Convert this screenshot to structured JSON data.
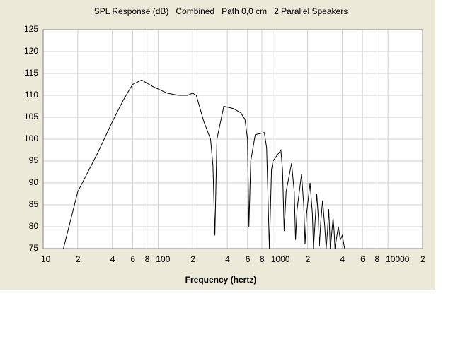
{
  "chart_data": {
    "type": "line",
    "title": "SPL Response (dB)   Combined   Path 0,0 cm   2 Parallel Speakers",
    "x_label": "Frequency (hertz)",
    "log_x": true,
    "grid": true,
    "color": "#000000",
    "xlim": [
      10,
      20000
    ],
    "ylim": [
      75,
      125
    ],
    "xticks": [
      10,
      {
        "value": 20,
        "label": "2"
      },
      {
        "value": 40,
        "label": "4"
      },
      {
        "value": 60,
        "label": "6"
      },
      {
        "value": 80,
        "label": "8"
      },
      100,
      {
        "value": 200,
        "label": "2"
      },
      {
        "value": 400,
        "label": "4"
      },
      {
        "value": 600,
        "label": "6"
      },
      {
        "value": 800,
        "label": "8"
      },
      1000,
      {
        "value": 2000,
        "label": "2"
      },
      {
        "value": 4000,
        "label": "4"
      },
      {
        "value": 6000,
        "label": "6"
      },
      {
        "value": 8000,
        "label": "8"
      },
      10000,
      {
        "value": 20000,
        "label": "2"
      }
    ],
    "yticks": [
      75,
      80,
      85,
      90,
      95,
      100,
      105,
      110,
      115,
      120,
      125
    ],
    "x": [
      15,
      20,
      30,
      40,
      50,
      60,
      72,
      90,
      120,
      150,
      180,
      200,
      215,
      250,
      286,
      300,
      312,
      325,
      373,
      450,
      525,
      570,
      600,
      617,
      640,
      700,
      840,
      880,
      930,
      970,
      1000,
      1170,
      1210,
      1250,
      1300,
      1450,
      1530,
      1570,
      1620,
      1770,
      1850,
      1900,
      1960,
      2100,
      2200,
      2250,
      2310,
      2400,
      2480,
      2530,
      2600,
      2700,
      2820,
      2900,
      2980,
      3050,
      3100,
      3150,
      3230,
      3330,
      3400,
      3460,
      3550,
      3700,
      3850,
      4000,
      4200
    ],
    "values": [
      75,
      88,
      97,
      104,
      109,
      112.5,
      113.5,
      112,
      110.5,
      110,
      110,
      110.5,
      110,
      104,
      100,
      94,
      78,
      100,
      107.5,
      107,
      106,
      104.5,
      100,
      80,
      95,
      101,
      101.5,
      98,
      75,
      93,
      95,
      97.5,
      93,
      79,
      88,
      94.5,
      88,
      77,
      84,
      92,
      85,
      76,
      83,
      90,
      83,
      75,
      80,
      87.5,
      82,
      75.5,
      81,
      86,
      80,
      75,
      79,
      84,
      80,
      75,
      78,
      82,
      79,
      75,
      77,
      80,
      77,
      78,
      75
    ]
  }
}
